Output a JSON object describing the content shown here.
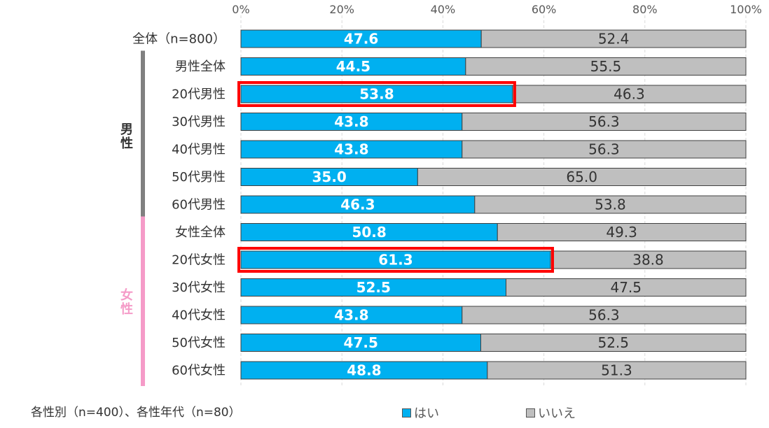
{
  "chart_data": {
    "type": "bar",
    "orientation": "horizontal",
    "stacked": true,
    "xlim": [
      0,
      100
    ],
    "ticks": [
      "0%",
      "20%",
      "40%",
      "60%",
      "80%",
      "100%"
    ],
    "categories": [
      "全体（n=800）",
      "男性全体",
      "20代男性",
      "30代男性",
      "40代男性",
      "50代男性",
      "60代男性",
      "女性全体",
      "20代女性",
      "30代女性",
      "40代女性",
      "50代女性",
      "60代女性"
    ],
    "series": [
      {
        "name": "はい",
        "color": "#00B0F0",
        "values": [
          47.6,
          44.5,
          53.8,
          43.8,
          43.8,
          35.0,
          46.3,
          50.8,
          61.3,
          52.5,
          43.8,
          47.5,
          48.8
        ]
      },
      {
        "name": "いいえ",
        "color": "#BFBFBF",
        "values": [
          52.4,
          55.5,
          46.3,
          56.3,
          56.3,
          65.0,
          53.8,
          49.3,
          38.8,
          47.5,
          56.3,
          52.5,
          51.3
        ]
      }
    ],
    "value_labels": [
      [
        "47.6",
        "44.5",
        "53.8",
        "43.8",
        "43.8",
        "35.0",
        "46.3",
        "50.8",
        "61.3",
        "52.5",
        "43.8",
        "47.5",
        "48.8"
      ],
      [
        "52.4",
        "55.5",
        "46.3",
        "56.3",
        "56.3",
        "65.0",
        "53.8",
        "49.3",
        "38.8",
        "47.5",
        "56.3",
        "52.5",
        "51.3"
      ]
    ],
    "highlighted": [
      "20代男性",
      "20代女性"
    ],
    "highlight_color": "#FF0000",
    "groups": [
      {
        "label": "男性",
        "color": "#808080",
        "members": [
          "男性全体",
          "20代男性",
          "30代男性",
          "40代男性",
          "50代男性",
          "60代男性"
        ]
      },
      {
        "label": "女性",
        "color": "#F59BC8",
        "members": [
          "女性全体",
          "20代女性",
          "30代女性",
          "40代女性",
          "50代女性",
          "60代女性"
        ]
      }
    ],
    "grid": true,
    "legend_position": "bottom"
  },
  "note": "各性別（n=400）、各性年代（n=80）"
}
